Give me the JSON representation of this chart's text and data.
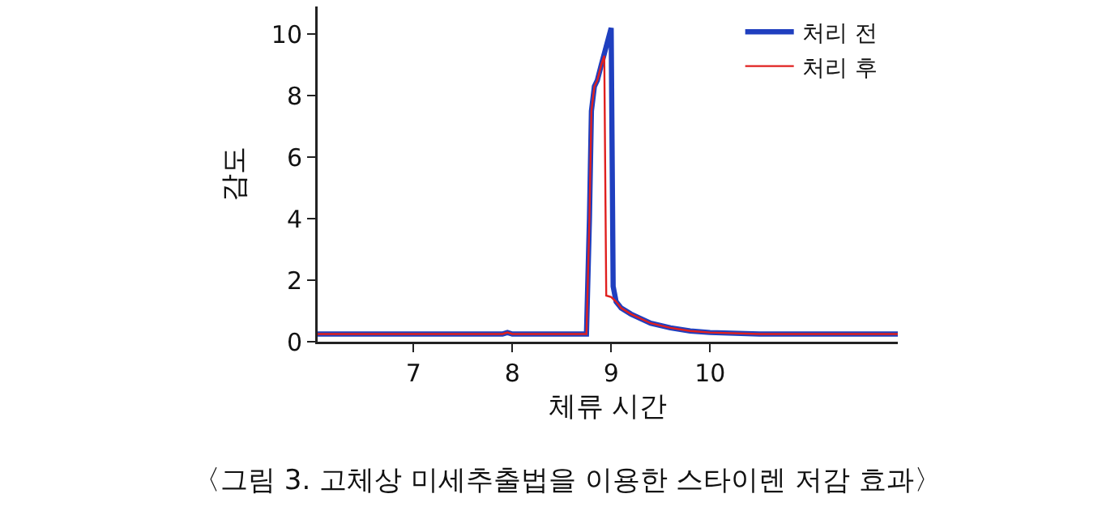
{
  "chart_data": {
    "type": "line",
    "xlabel": "체류 시간",
    "ylabel": "감도",
    "annotations": [
      "〈그림 3. 고체상 미세추출법을 이용한 스타이렌 저감 효과〉"
    ],
    "xlim": [
      6.03,
      11.9
    ],
    "xticks": [
      7,
      8,
      9,
      10
    ],
    "ylim": [
      0,
      10.9
    ],
    "yticks": [
      0,
      2,
      4,
      6,
      8,
      10
    ],
    "grid": false,
    "legend": "top right",
    "marker": "none",
    "line_style": "solid",
    "series": [
      {
        "name": "처리 전",
        "color": "#1f3fbf",
        "x": [
          6.03,
          7.9,
          7.95,
          8.0,
          8.75,
          8.78,
          8.8,
          8.83,
          8.86,
          8.9,
          8.95,
          9.0,
          9.02,
          9.05,
          9.1,
          9.2,
          9.4,
          9.6,
          9.8,
          10.0,
          10.5,
          11.9
        ],
        "values": [
          0.25,
          0.25,
          0.3,
          0.25,
          0.25,
          4,
          7.5,
          8.3,
          8.5,
          9.0,
          9.6,
          10.2,
          1.8,
          1.3,
          1.1,
          0.9,
          0.6,
          0.45,
          0.35,
          0.3,
          0.25,
          0.25
        ]
      },
      {
        "name": "처리 후",
        "color": "#e0201f",
        "x": [
          6.03,
          7.9,
          7.95,
          8.0,
          8.75,
          8.78,
          8.8,
          8.83,
          8.86,
          8.9,
          8.93,
          8.95,
          9.0,
          9.05,
          9.1,
          9.2,
          9.4,
          9.6,
          9.8,
          10.0,
          10.5,
          11.9
        ],
        "values": [
          0.25,
          0.25,
          0.3,
          0.25,
          0.25,
          4,
          7.5,
          8.3,
          8.5,
          9.0,
          9.3,
          1.5,
          1.45,
          1.3,
          1.1,
          0.9,
          0.6,
          0.45,
          0.35,
          0.3,
          0.25,
          0.25
        ]
      }
    ]
  }
}
